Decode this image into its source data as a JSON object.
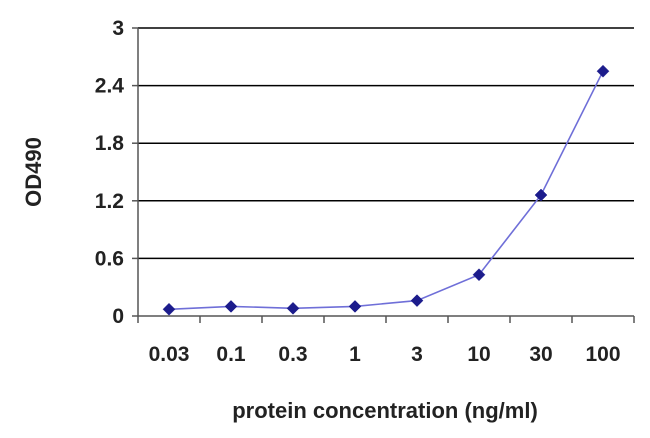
{
  "chart_data": {
    "type": "line",
    "title": "",
    "xlabel": "protein concentration (ng/ml)",
    "ylabel": "OD490",
    "categories": [
      "0.03",
      "0.1",
      "0.3",
      "1",
      "3",
      "10",
      "30",
      "100"
    ],
    "yticks": [
      "0",
      "0.6",
      "1.2",
      "1.8",
      "2.4",
      "3"
    ],
    "ylim": [
      0,
      3
    ],
    "grid": true,
    "series": [
      {
        "name": "OD490",
        "values": [
          0.07,
          0.1,
          0.08,
          0.1,
          0.16,
          0.43,
          1.26,
          2.55
        ]
      }
    ],
    "colors": {
      "line": "#6f6fd8",
      "marker": "#1c1c8c",
      "grid": "#000000",
      "axis": "#555555"
    }
  }
}
